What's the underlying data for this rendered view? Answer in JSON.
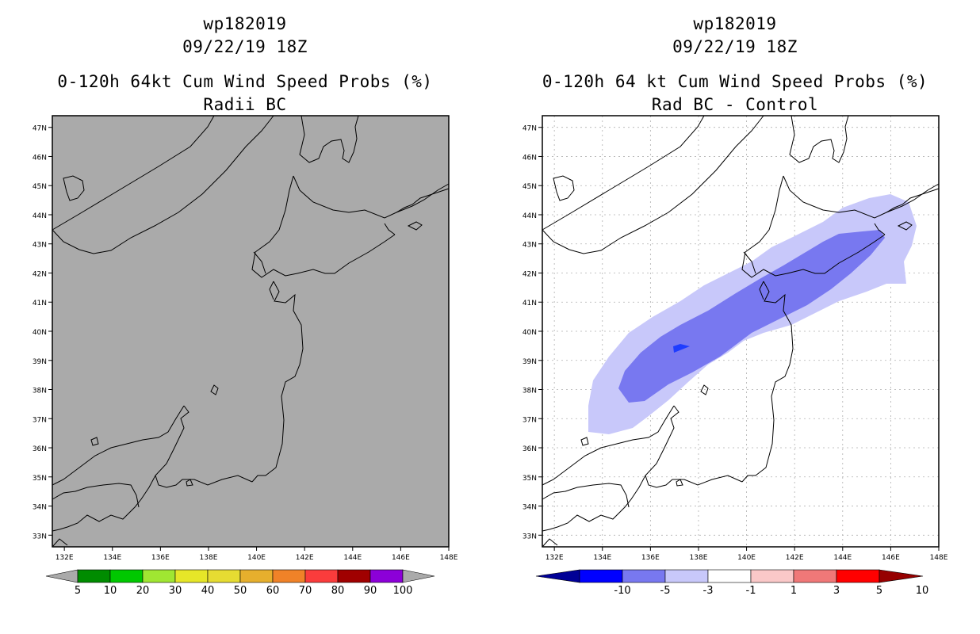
{
  "left_panel": {
    "title_line1": "wp182019",
    "title_line2": "09/22/19 18Z",
    "title_line3": "0-120h 64kt Cum Wind Speed Probs (%)",
    "title_line4": "Radii BC",
    "field_color": "#aaaaaa",
    "colorbar": {
      "colors": [
        "#aaaaaa",
        "#008c00",
        "#00c800",
        "#a0e632",
        "#e6e628",
        "#e6dc32",
        "#e6af2d",
        "#f08228",
        "#fa3c3c",
        "#a00000",
        "#8c00d8",
        "#aaaaaa"
      ],
      "labels": [
        "5",
        "10",
        "20",
        "30",
        "40",
        "50",
        "60",
        "70",
        "80",
        "90",
        "100"
      ]
    }
  },
  "right_panel": {
    "title_line1": "wp182019",
    "title_line2": "09/22/19 18Z",
    "title_line3": "0-120h 64 kt Cum Wind Speed Probs (%)",
    "title_line4": "Rad BC - Control",
    "shading": {
      "light": "#c8c8fa",
      "medium": "#7878f0",
      "dark": "#1e3cff"
    },
    "colorbar": {
      "colors": [
        "#000096",
        "#0000ff",
        "#7878f0",
        "#c8c8fa",
        "#ffffff",
        "#fac8c8",
        "#f07878",
        "#ff0000",
        "#960000"
      ],
      "labels": [
        "-10",
        "-5",
        "-3",
        "-1",
        "1",
        "3",
        "5",
        "10"
      ]
    }
  },
  "map": {
    "lat_labels": [
      "47N",
      "46N",
      "45N",
      "44N",
      "43N",
      "42N",
      "41N",
      "40N",
      "39N",
      "38N",
      "37N",
      "36N",
      "35N",
      "34N",
      "33N"
    ],
    "lon_labels": [
      "132E",
      "134E",
      "136E",
      "138E",
      "140E",
      "142E",
      "144E",
      "146E",
      "148E"
    ],
    "extent": {
      "lon_min": 131.5,
      "lon_max": 148,
      "lat_min": 32.6,
      "lat_max": 47.4
    }
  }
}
